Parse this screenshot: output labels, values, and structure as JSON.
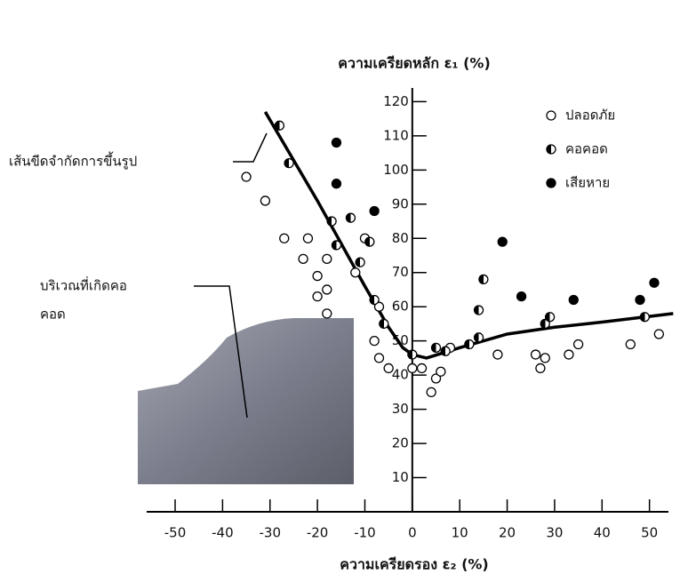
{
  "chart_data": {
    "type": "scatter",
    "xlabel": "ความเครียดรอง ε₂ (%)",
    "ylabel": "ความเครียดหลัก ε₁ (%)",
    "xlim": [
      -56,
      54
    ],
    "ylim": [
      0,
      124
    ],
    "xticks": [
      -50,
      -40,
      -30,
      -20,
      -10,
      0,
      10,
      20,
      30,
      40,
      50
    ],
    "yticks": [
      10,
      20,
      30,
      40,
      50,
      60,
      70,
      80,
      90,
      100,
      110,
      120
    ],
    "legend": "top-right",
    "limit_curve": {
      "name": "เส้นขีดจำกัดการขึ้นรูป",
      "color": "#000000",
      "x": [
        -31,
        -20,
        -10,
        -5,
        -2,
        0,
        3,
        10,
        20,
        30,
        40,
        55
      ],
      "values": [
        117,
        91,
        66,
        54,
        48,
        46,
        45,
        48,
        52,
        54,
        55.5,
        58
      ]
    },
    "region_label": [
      "บริเวณที่เกิดคอ",
      "คอด"
    ],
    "series": [
      {
        "name": "ปลอดภัย",
        "color": "#000000",
        "marker": "open",
        "x": [
          -35,
          -31,
          -27,
          -23,
          -22,
          -18,
          -20,
          -18,
          -20,
          -18,
          -10,
          -12,
          -8,
          -7,
          -5,
          0,
          2,
          4,
          5,
          6,
          8,
          18,
          26,
          27,
          28,
          33,
          35,
          46,
          52,
          -7
        ],
        "values": [
          98,
          91,
          80,
          74,
          80,
          74,
          69,
          65,
          63,
          58,
          80,
          70,
          50,
          45,
          42,
          42,
          42,
          35,
          39,
          41,
          48,
          46,
          46,
          42,
          45,
          46,
          49,
          49,
          52,
          60
        ]
      },
      {
        "name": "คอคอด",
        "color": "#000000",
        "marker": "half",
        "x": [
          -28,
          -26,
          -17,
          -16,
          -13,
          -11,
          -9,
          -8,
          -6,
          0,
          5,
          7,
          12,
          14,
          14,
          15,
          28,
          29,
          49
        ],
        "values": [
          113,
          102,
          85,
          78,
          86,
          73,
          79,
          62,
          55,
          46,
          48,
          47,
          49,
          51,
          59,
          68,
          55,
          57,
          57
        ]
      },
      {
        "name": "เสียหาย",
        "color": "#000000",
        "marker": "filled",
        "x": [
          -16,
          -16,
          -8,
          19,
          23,
          34,
          48,
          51
        ],
        "values": [
          108,
          96,
          88,
          79,
          63,
          62,
          62,
          67
        ]
      }
    ]
  }
}
